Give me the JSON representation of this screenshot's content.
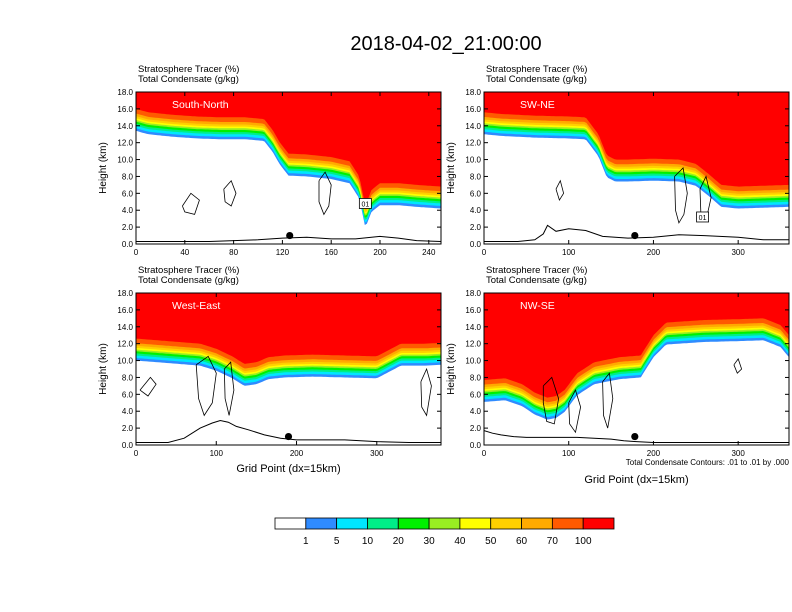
{
  "title": "2018-04-02_21:00:00",
  "colors": {
    "white": "#ffffff",
    "blue": "#2f8bff",
    "cyan": "#00e6ff",
    "seagreen": "#00ee88",
    "green": "#00f000",
    "lime": "#99ee22",
    "yellow": "#ffff00",
    "gold": "#ffd000",
    "orange": "#ffaa00",
    "redorange": "#ff5a00",
    "red": "#ff0000"
  },
  "colorbar": {
    "labels": [
      "1",
      "5",
      "10",
      "20",
      "30",
      "40",
      "50",
      "60",
      "70",
      "100"
    ],
    "fill_colors": [
      "#ffffff",
      "#2f8bff",
      "#00e6ff",
      "#00ee88",
      "#00f000",
      "#99ee22",
      "#ffff00",
      "#ffd000",
      "#ffaa00",
      "#ff5a00",
      "#ff0000"
    ]
  },
  "chart_data": [
    {
      "type": "contour",
      "panel": "South-North",
      "subtitle_line1": "Stratosphere Tracer   (%)",
      "subtitle_line2": "Total Condensate   (g/kg)",
      "xlabel": "",
      "ylabel": "Height (km)",
      "xlim": [
        0,
        250
      ],
      "ylim": [
        0,
        18
      ],
      "xticks": [
        "0",
        "40",
        "80",
        "120",
        "160",
        "200",
        "240"
      ],
      "yticks": [
        "0.0",
        "2.0",
        "4.0",
        "6.0",
        "8.0",
        "10.0",
        "12.0",
        "14.0",
        "16.0",
        "18.0"
      ],
      "tropopause_x": [
        0,
        10,
        30,
        50,
        70,
        90,
        105,
        112,
        118,
        125,
        140,
        160,
        175,
        183,
        188,
        193,
        200,
        215,
        230,
        250
      ],
      "tropopause_y": [
        16.0,
        15.6,
        15.3,
        15.1,
        15.0,
        15.0,
        14.8,
        13.5,
        12.0,
        10.7,
        10.6,
        10.3,
        9.8,
        8.0,
        4.5,
        6.4,
        7.2,
        7.2,
        7.0,
        6.8
      ],
      "marker_x": 126,
      "marker_y": 1.0,
      "box_label": "01",
      "box_x": 188,
      "box_y": 4.8
    },
    {
      "type": "contour",
      "panel": "SW-NE",
      "subtitle_line1": "Stratosphere Tracer   (%)",
      "subtitle_line2": "Total Condensate   (g/kg)",
      "xlabel": "",
      "ylabel": "Height (km)",
      "xlim": [
        0,
        360
      ],
      "ylim": [
        0,
        18
      ],
      "xticks": [
        "0",
        "100",
        "200",
        "300"
      ],
      "yticks": [
        "0.0",
        "2.0",
        "4.0",
        "6.0",
        "8.0",
        "10.0",
        "12.0",
        "14.0",
        "16.0",
        "18.0"
      ],
      "tropopause_x": [
        0,
        20,
        60,
        100,
        120,
        135,
        145,
        155,
        170,
        200,
        230,
        250,
        265,
        280,
        300,
        330,
        360
      ],
      "tropopause_y": [
        15.6,
        15.4,
        15.2,
        15.1,
        15.0,
        13.0,
        10.5,
        10.0,
        10.0,
        10.1,
        10.0,
        9.5,
        8.3,
        7.0,
        6.8,
        6.9,
        7.0
      ],
      "marker_x": 178,
      "marker_y": 1.0,
      "box_label": "01",
      "box_x": 258,
      "box_y": 3.2
    },
    {
      "type": "contour",
      "panel": "West-East",
      "subtitle_line1": "Stratosphere Tracer   (%)",
      "subtitle_line2": "Total Condensate   (g/kg)",
      "xlabel": "Grid Point (dx=15km)",
      "ylabel": "Height (km)",
      "xlim": [
        0,
        380
      ],
      "ylim": [
        0,
        18
      ],
      "xticks": [
        "0",
        "100",
        "200",
        "300"
      ],
      "yticks": [
        "0.0",
        "2.0",
        "4.0",
        "6.0",
        "8.0",
        "10.0",
        "12.0",
        "14.0",
        "16.0",
        "18.0"
      ],
      "tropopause_x": [
        0,
        40,
        80,
        100,
        120,
        135,
        150,
        165,
        185,
        220,
        260,
        300,
        330,
        360,
        380
      ],
      "tropopause_y": [
        12.6,
        12.3,
        12.0,
        11.4,
        10.5,
        9.6,
        9.8,
        10.4,
        10.6,
        10.7,
        10.6,
        10.5,
        12.0,
        12.0,
        12.1
      ],
      "marker_x": 190,
      "marker_y": 1.0,
      "box_label": "",
      "box_x": 0,
      "box_y": 0
    },
    {
      "type": "contour",
      "panel": "NW-SE",
      "subtitle_line1": "Stratosphere Tracer   (%)",
      "subtitle_line2": "Total Condensate   (g/kg)",
      "xlabel": "Grid Point (dx=15km)",
      "ylabel": "Height (km)",
      "xlim": [
        0,
        360
      ],
      "ylim": [
        0,
        18
      ],
      "xticks": [
        "0",
        "100",
        "200",
        "300"
      ],
      "yticks": [
        "0.0",
        "2.0",
        "4.0",
        "6.0",
        "8.0",
        "10.0",
        "12.0",
        "14.0",
        "16.0",
        "18.0"
      ],
      "tropopause_x": [
        0,
        25,
        45,
        60,
        75,
        85,
        95,
        110,
        130,
        160,
        185,
        200,
        215,
        260,
        300,
        330,
        350,
        360
      ],
      "tropopause_y": [
        7.7,
        7.9,
        7.2,
        6.2,
        5.6,
        5.8,
        6.5,
        8.5,
        9.8,
        10.4,
        10.6,
        13.0,
        14.5,
        14.8,
        14.9,
        15.0,
        14.2,
        13.0
      ],
      "marker_x": 178,
      "marker_y": 1.0,
      "box_label": "",
      "box_x": 0,
      "box_y": 0,
      "footnote": "Total Condensate Contours: .01 to .01 by .000"
    }
  ]
}
